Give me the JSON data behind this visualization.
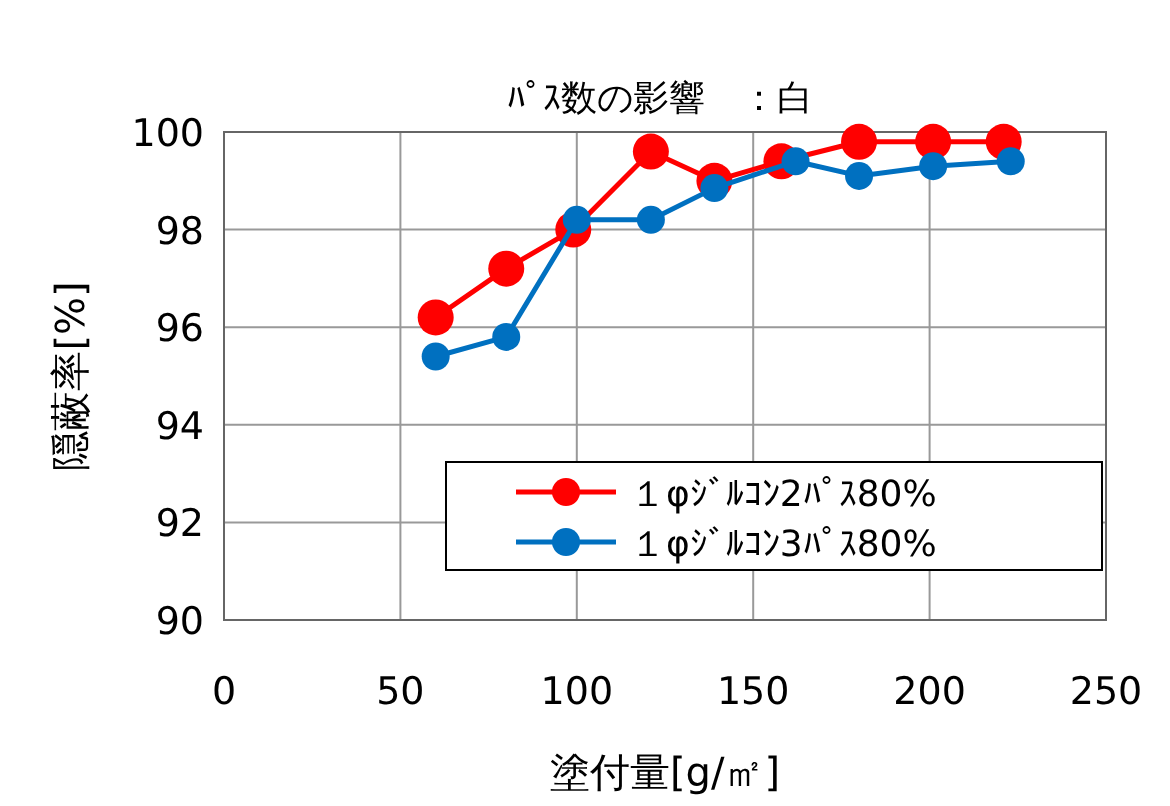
{
  "chart_data": {
    "type": "line",
    "title": "ﾊﾟｽ数の影響　：白",
    "xlabel": "塗付量[g/㎡]",
    "ylabel": "隠蔽率[%]",
    "xlim": [
      0,
      250
    ],
    "xticks": [
      0,
      50,
      100,
      150,
      200,
      250
    ],
    "ylim": [
      90,
      100
    ],
    "yticks": [
      90,
      92,
      94,
      96,
      98,
      100
    ],
    "grid": true,
    "legend": "bottom right",
    "marker": "circle",
    "line_style": "solid",
    "series": [
      {
        "name": "１φｼﾞﾙｺﾝ2ﾊﾟｽ80%",
        "color": "#ff0000",
        "x": [
          60,
          80,
          99,
          121,
          139,
          158,
          180,
          201,
          221
        ],
        "values": [
          96.2,
          97.2,
          98.0,
          99.6,
          99.0,
          99.4,
          99.8,
          99.8,
          99.8
        ]
      },
      {
        "name": "１φｼﾞﾙｺﾝ3ﾊﾟｽ80%",
        "color": "#0070c0",
        "x": [
          60,
          80,
          100,
          121,
          139,
          162,
          180,
          201,
          223
        ],
        "values": [
          95.4,
          95.8,
          98.2,
          98.2,
          98.85,
          99.4,
          99.1,
          99.3,
          99.4
        ]
      }
    ]
  }
}
